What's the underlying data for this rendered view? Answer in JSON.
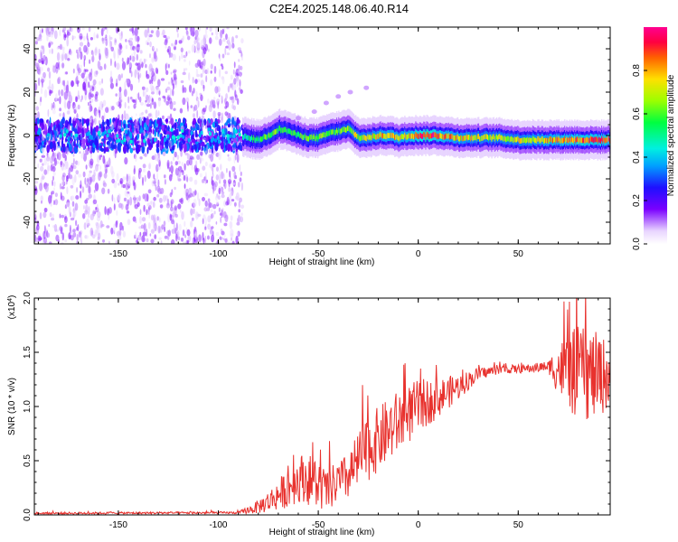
{
  "title": "C2E4.2025.148.06.40.R14",
  "chart_data": [
    {
      "type": "heatmap",
      "name": "spectrogram",
      "xlabel": "Height of straight line (km)",
      "ylabel": "Frequency (Hz)",
      "xlim": [
        -192,
        96
      ],
      "ylim": [
        -50,
        50
      ],
      "xticks": [
        -150,
        -100,
        -50,
        0,
        50
      ],
      "yticks": [
        -40,
        -20,
        0,
        20,
        40
      ],
      "colorbar": {
        "label": "Normalized spectral amplitude",
        "range": [
          0,
          1
        ],
        "ticks": [
          "0.0",
          "0.2",
          "0.4",
          "0.6",
          "0.8"
        ]
      },
      "cutoff_x": -88,
      "ridge": [
        {
          "x": -86,
          "y": -1,
          "a": 0.5
        },
        {
          "x": -80,
          "y": -2,
          "a": 0.55
        },
        {
          "x": -75,
          "y": 0,
          "a": 0.6
        },
        {
          "x": -70,
          "y": 3,
          "a": 0.6
        },
        {
          "x": -65,
          "y": 2,
          "a": 0.55
        },
        {
          "x": -60,
          "y": 0,
          "a": 0.55
        },
        {
          "x": -55,
          "y": -1,
          "a": 0.6
        },
        {
          "x": -50,
          "y": -1,
          "a": 0.65
        },
        {
          "x": -45,
          "y": 1,
          "a": 0.6
        },
        {
          "x": -40,
          "y": 2,
          "a": 0.6
        },
        {
          "x": -35,
          "y": 3,
          "a": 0.65
        },
        {
          "x": -30,
          "y": -1,
          "a": 0.7
        },
        {
          "x": -25,
          "y": -1,
          "a": 0.7
        },
        {
          "x": -20,
          "y": 0,
          "a": 0.75
        },
        {
          "x": -15,
          "y": 0,
          "a": 0.8
        },
        {
          "x": -10,
          "y": -1,
          "a": 0.75
        },
        {
          "x": -5,
          "y": 0,
          "a": 0.8
        },
        {
          "x": 0,
          "y": 0,
          "a": 0.9
        },
        {
          "x": 5,
          "y": 0,
          "a": 0.95
        },
        {
          "x": 10,
          "y": 0,
          "a": 0.85
        },
        {
          "x": 20,
          "y": -1,
          "a": 0.75
        },
        {
          "x": 30,
          "y": -1,
          "a": 0.7
        },
        {
          "x": 40,
          "y": -1,
          "a": 0.7
        },
        {
          "x": 50,
          "y": -2,
          "a": 0.7
        },
        {
          "x": 60,
          "y": -2,
          "a": 0.75
        },
        {
          "x": 70,
          "y": -2,
          "a": 0.8
        },
        {
          "x": 80,
          "y": -2,
          "a": 0.85
        },
        {
          "x": 90,
          "y": -2,
          "a": 0.85
        },
        {
          "x": 96,
          "y": -2,
          "a": 0.85
        }
      ],
      "branch": [
        {
          "x": -60,
          "y": 8
        },
        {
          "x": -52,
          "y": 11
        },
        {
          "x": -46,
          "y": 15
        },
        {
          "x": -40,
          "y": 18
        },
        {
          "x": -34,
          "y": 20
        },
        {
          "x": -26,
          "y": 22
        }
      ]
    },
    {
      "type": "line",
      "name": "snr",
      "xlabel": "Height of straight line (km)",
      "ylabel": "SNR (10 * v/v)",
      "multiplier_label": "(x10",
      "multiplier_exp": "4",
      "xlim": [
        -192,
        96
      ],
      "ylim": [
        0,
        2.0
      ],
      "xticks": [
        -150,
        -100,
        -50,
        0,
        50
      ],
      "yticks": [
        "0.0",
        "0.5",
        "1.0",
        "1.5",
        "2.0"
      ],
      "color": "#e8322e",
      "envelope": [
        {
          "x": -192,
          "base": 0.015,
          "noise": 0.01
        },
        {
          "x": -90,
          "base": 0.02,
          "noise": 0.01
        },
        {
          "x": -82,
          "base": 0.06,
          "noise": 0.05
        },
        {
          "x": -75,
          "base": 0.12,
          "noise": 0.1
        },
        {
          "x": -65,
          "base": 0.25,
          "noise": 0.18
        },
        {
          "x": -58,
          "base": 0.35,
          "noise": 0.22
        },
        {
          "x": -52,
          "base": 0.3,
          "noise": 0.25
        },
        {
          "x": -46,
          "base": 0.22,
          "noise": 0.2
        },
        {
          "x": -40,
          "base": 0.3,
          "noise": 0.2
        },
        {
          "x": -35,
          "base": 0.35,
          "noise": 0.22
        },
        {
          "x": -28,
          "base": 0.55,
          "noise": 0.3
        },
        {
          "x": -20,
          "base": 0.7,
          "noise": 0.3
        },
        {
          "x": -10,
          "base": 0.85,
          "noise": 0.3
        },
        {
          "x": 0,
          "base": 1.0,
          "noise": 0.25
        },
        {
          "x": 10,
          "base": 1.08,
          "noise": 0.18
        },
        {
          "x": 20,
          "base": 1.18,
          "noise": 0.12
        },
        {
          "x": 30,
          "base": 1.3,
          "noise": 0.06
        },
        {
          "x": 40,
          "base": 1.34,
          "noise": 0.04
        },
        {
          "x": 55,
          "base": 1.35,
          "noise": 0.04
        },
        {
          "x": 65,
          "base": 1.37,
          "noise": 0.05
        },
        {
          "x": 70,
          "base": 1.35,
          "noise": 0.25
        },
        {
          "x": 80,
          "base": 1.3,
          "noise": 0.45
        },
        {
          "x": 90,
          "base": 1.28,
          "noise": 0.4
        },
        {
          "x": 96,
          "base": 1.3,
          "noise": 0.3
        }
      ]
    }
  ]
}
